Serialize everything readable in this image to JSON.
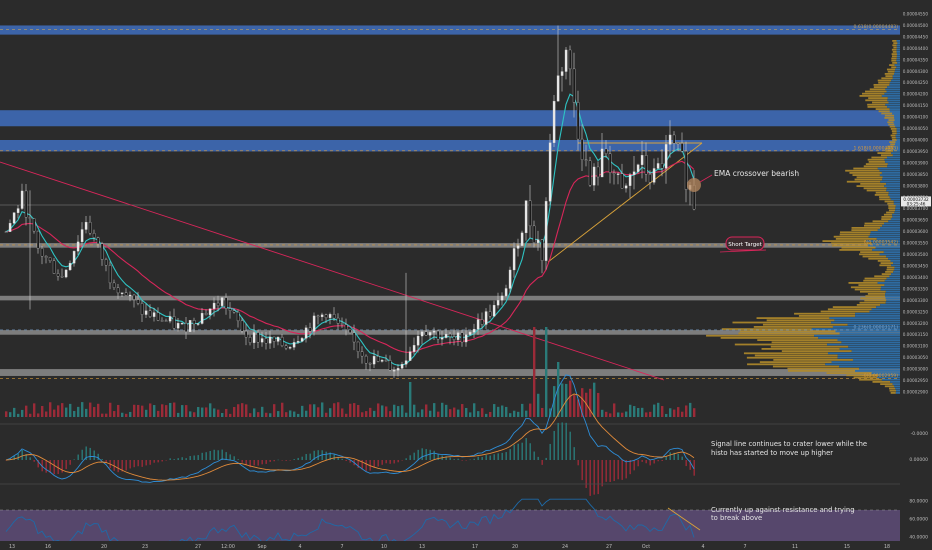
{
  "chart_data": {
    "type": "candlestick",
    "annotations": {
      "ema": "EMA crossover bearish",
      "target": "Short Target",
      "macd": "Signal line continues to crater lower while the histo has started to move up higher",
      "macd_line1": "Signal line continues to crater lower while the",
      "macd_line2": "histo has started to move up higher",
      "rsi_line1": "Currently up against resistance and trying",
      "rsi_line2": "to break above"
    },
    "fib_labels": {
      "f0618": "0.618(0.00004483)",
      "f1": "1.618(0.00003953)",
      "f0": "0(0.00003542)",
      "f0236": "0.236(0.00003171)",
      "fneg": "-0(0.00002959)"
    },
    "price_ticks": [
      "0.00004550",
      "0.00004500",
      "0.00004450",
      "0.00004400",
      "0.00004350",
      "0.00004300",
      "0.00004250",
      "0.00004200",
      "0.00004150",
      "0.00004100",
      "0.00004050",
      "0.00004000",
      "0.00003950",
      "0.00003900",
      "0.00003850",
      "0.00003800",
      "0.00003750",
      "0.00003700",
      "0.00003650",
      "0.00003600",
      "0.00003550",
      "0.00003500",
      "0.00003450",
      "0.00003400",
      "0.00003350",
      "0.00003300",
      "0.00003250",
      "0.00003200",
      "0.00003150",
      "0.00003100",
      "0.00003050",
      "0.00003000",
      "0.00002950",
      "0.00002900"
    ],
    "ylim": [
      2.9e-05,
      4.55e-05
    ],
    "current_price": "0.00003732",
    "countdown": "03:25:46",
    "macd_ticks": [
      "0.00000",
      "-0.0000"
    ],
    "rsi_ticks": [
      "80.0000",
      "60.0000",
      "40.0000"
    ],
    "x_labels": [
      "13",
      "16",
      "20",
      "23",
      "27",
      "12:00",
      "Sep",
      "4",
      "7",
      "10",
      "13",
      "17",
      "20",
      "24",
      "27",
      "Oct",
      "4",
      "7",
      "11",
      "15",
      "18"
    ],
    "resistance_zones": [
      [
        4.46e-05,
        4.5e-05
      ],
      [
        4.06e-05,
        4.13e-05
      ],
      [
        3.95e-05,
        4e-05
      ]
    ],
    "support_zones": [
      [
        3.53e-05,
        3.55e-05
      ],
      [
        3.3e-05,
        3.32e-05
      ],
      [
        3.15e-05,
        3.17e-05
      ],
      [
        2.97e-05,
        3e-05
      ]
    ],
    "colors": {
      "up": "#e8e8e8",
      "down": "#1a1a1a",
      "ema_fast": "#2ec4c4",
      "ema_slow": "#d8265a",
      "zone_blue": "#3f6ec0",
      "zone_gray": "#9a9a9a",
      "triangle": "#d8a23a",
      "trend": "#d8265a",
      "vol_up": "#2a7a78",
      "vol_down": "#9b2b38",
      "profile_gold": "#b08a2a",
      "profile_blue": "#2e6fa8",
      "rsi_band": "#5b4a73",
      "rsi_line": "#1e6aa8"
    }
  }
}
